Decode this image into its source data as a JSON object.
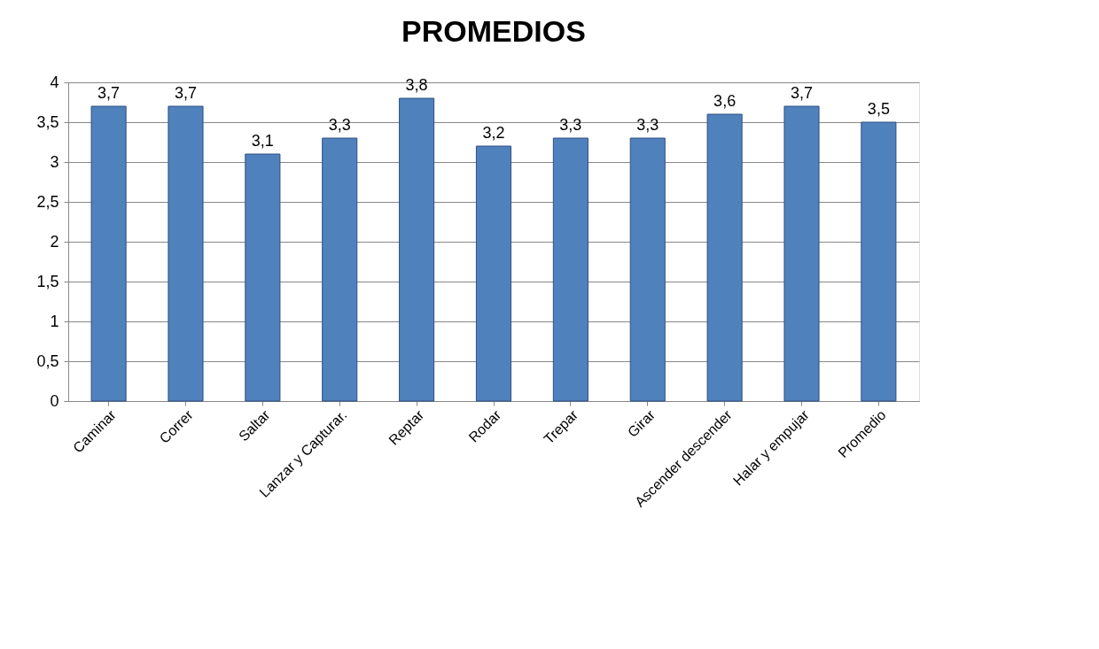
{
  "chart_data": {
    "type": "bar",
    "title": "PROMEDIOS",
    "categories": [
      "Caminar",
      "Correr",
      "Saltar",
      "Lanzar y Capturar.",
      "Reptar",
      "Rodar",
      "Trepar",
      "Girar",
      "Ascender descender",
      "Halar y empujar",
      "Promedio"
    ],
    "values": [
      3.7,
      3.7,
      3.1,
      3.3,
      3.8,
      3.2,
      3.3,
      3.3,
      3.6,
      3.7,
      3.5
    ],
    "value_labels": [
      "3,7",
      "3,7",
      "3,1",
      "3,3",
      "3,8",
      "3,2",
      "3,3",
      "3,3",
      "3,6",
      "3,7",
      "3,5"
    ],
    "color": "#4f81bd",
    "ylim": [
      0,
      4
    ],
    "yticks": [
      0,
      {
        "value": 0.5,
        "label": "0,5"
      },
      1,
      {
        "value": 1.5,
        "label": "1,5"
      },
      2,
      {
        "value": 2.5,
        "label": "2,5"
      },
      3,
      {
        "value": 3.5,
        "label": "3,5"
      },
      4
    ],
    "grid": "y"
  }
}
